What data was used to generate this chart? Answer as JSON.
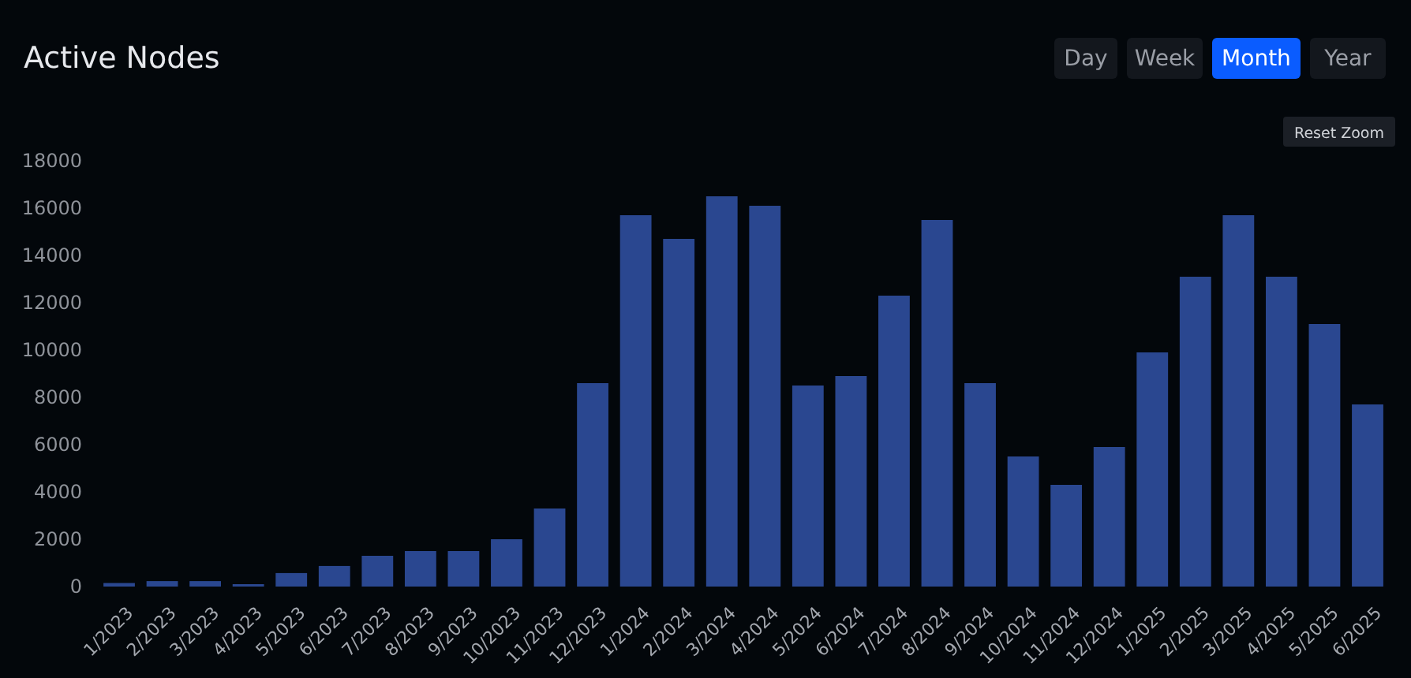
{
  "chart_data": {
    "type": "bar",
    "title": "Active Nodes",
    "categories": [
      "1/2023",
      "2/2023",
      "3/2023",
      "4/2023",
      "5/2023",
      "6/2023",
      "7/2023",
      "8/2023",
      "9/2023",
      "10/2023",
      "11/2023",
      "12/2023",
      "1/2024",
      "2/2024",
      "3/2024",
      "4/2024",
      "5/2024",
      "6/2024",
      "7/2024",
      "8/2024",
      "9/2024",
      "10/2024",
      "11/2024",
      "12/2024",
      "1/2025",
      "2/2025",
      "3/2025",
      "4/2025",
      "5/2025",
      "6/2025"
    ],
    "values": [
      150,
      230,
      230,
      100,
      570,
      870,
      1300,
      1500,
      1500,
      2000,
      3300,
      8600,
      15700,
      14700,
      16500,
      16100,
      8500,
      8900,
      12300,
      15500,
      8600,
      5500,
      4300,
      5900,
      9900,
      13100,
      15700,
      13100,
      11100,
      7700
    ],
    "color": "#2a4790",
    "ylim": [
      0,
      18000
    ],
    "yticks": [
      0,
      2000,
      4000,
      6000,
      8000,
      10000,
      12000,
      14000,
      16000,
      18000
    ],
    "grid": false,
    "annotations": [
      "Day",
      "Week",
      "Month",
      "Year",
      "Reset Zoom"
    ]
  }
}
